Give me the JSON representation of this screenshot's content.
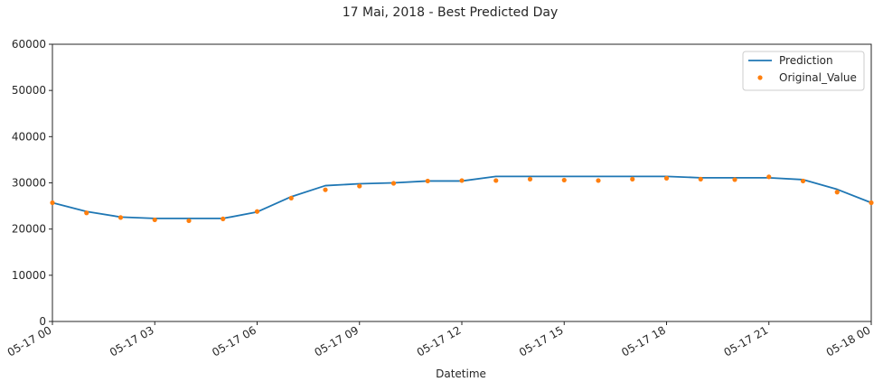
{
  "colors": {
    "prediction": "#1f77b4",
    "original": "#ff7f0e",
    "axis": "#262626",
    "legend_border": "#cccccc"
  },
  "chart_data": {
    "type": "line",
    "title": "17 Mai, 2018 - Best Predicted Day",
    "xlabel": "Datetime",
    "ylabel": "",
    "x": [
      0,
      1,
      2,
      3,
      4,
      5,
      6,
      7,
      8,
      9,
      10,
      11,
      12,
      13,
      14,
      15,
      16,
      17,
      18,
      19,
      20,
      21,
      22,
      23,
      24
    ],
    "xlim": [
      0,
      24
    ],
    "ylim": [
      0,
      60000
    ],
    "xticks": [
      0,
      3,
      6,
      9,
      12,
      15,
      18,
      21,
      24
    ],
    "xtick_labels": [
      "05-17 00",
      "05-17 03",
      "05-17 06",
      "05-17 09",
      "05-17 12",
      "05-17 15",
      "05-17 18",
      "05-17 21",
      "05-18 00"
    ],
    "yticks": [
      0,
      10000,
      20000,
      30000,
      40000,
      50000,
      60000
    ],
    "ytick_labels": [
      "0",
      "10000",
      "20000",
      "30000",
      "40000",
      "50000",
      "60000"
    ],
    "grid": false,
    "legend_position": "top-right",
    "series": [
      {
        "name": "Prediction",
        "style": "line",
        "values": [
          25700,
          23800,
          22600,
          22300,
          22300,
          22300,
          23700,
          27000,
          29400,
          29800,
          30000,
          30400,
          30400,
          31400,
          31400,
          31400,
          31400,
          31400,
          31400,
          31100,
          31100,
          31100,
          30700,
          28600,
          25700
        ]
      },
      {
        "name": "Original_Value",
        "style": "markers",
        "values": [
          25700,
          23500,
          22500,
          22000,
          21800,
          22200,
          23800,
          26700,
          28500,
          29300,
          29900,
          30400,
          30500,
          30500,
          30800,
          30600,
          30500,
          30800,
          31000,
          30800,
          30700,
          31300,
          30400,
          28000,
          25700
        ]
      }
    ]
  }
}
